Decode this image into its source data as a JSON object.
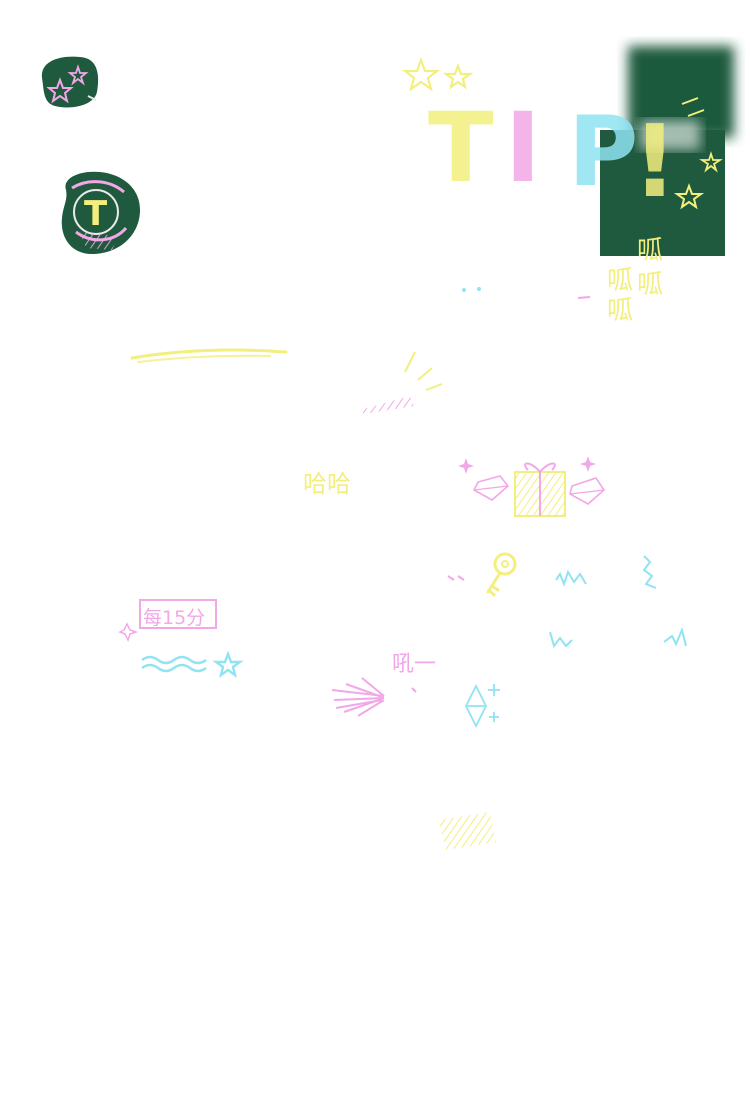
{
  "colors": {
    "chalk_yellow": "#f3ef7e",
    "chalk_pink": "#f2a7e6",
    "chalk_blue": "#8fe3f2",
    "board_green": "#1f5a3e",
    "chalk_white": "#e9e9e9"
  },
  "tip": {
    "letters": [
      "T",
      "I",
      "P",
      "!"
    ]
  },
  "labels": {
    "gua": "呱",
    "haha": "哈哈",
    "every15": "每15分",
    "hou": "吼一"
  },
  "icons": {
    "badge_letter": "T"
  }
}
